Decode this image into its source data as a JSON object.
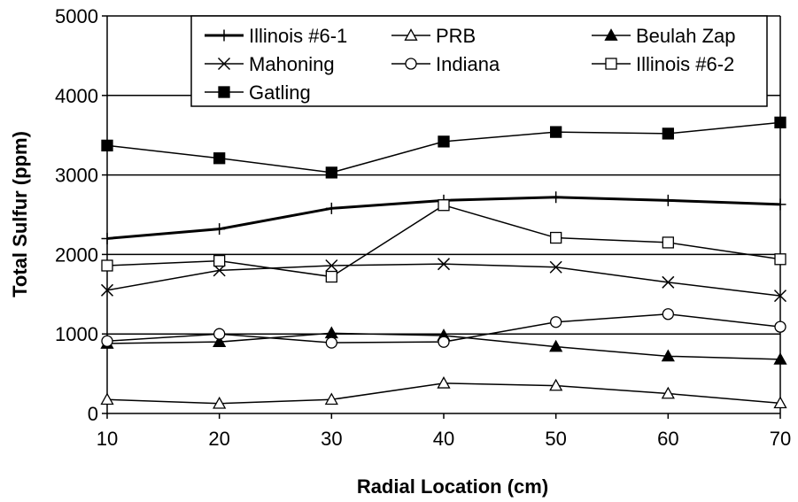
{
  "chart_data": {
    "type": "line",
    "title": "",
    "xlabel": "Radial Location (cm)",
    "ylabel": "Total Sulfur (ppm)",
    "xlim": [
      10,
      70
    ],
    "ylim": [
      0,
      5000
    ],
    "xticks": [
      10,
      20,
      30,
      40,
      50,
      60,
      70
    ],
    "yticks": [
      0,
      1000,
      2000,
      3000,
      4000,
      5000
    ],
    "grid": "horizontal",
    "legend_position": "top-right",
    "x": [
      10,
      20,
      30,
      40,
      50,
      60,
      70
    ],
    "series": [
      {
        "name": "Illinois #6-1",
        "marker": "plus",
        "values": [
          2200,
          2320,
          2580,
          2680,
          2720,
          2680,
          2630
        ]
      },
      {
        "name": "PRB",
        "marker": "triangle-open",
        "values": [
          175,
          125,
          175,
          380,
          350,
          250,
          130
        ]
      },
      {
        "name": "Beulah Zap",
        "marker": "triangle-filled",
        "values": [
          880,
          900,
          1010,
          980,
          840,
          720,
          680
        ]
      },
      {
        "name": "Mahoning",
        "marker": "x",
        "values": [
          1550,
          1800,
          1860,
          1880,
          1840,
          1650,
          1480
        ]
      },
      {
        "name": "Indiana",
        "marker": "circle-open",
        "values": [
          910,
          1000,
          890,
          900,
          1150,
          1250,
          1090
        ]
      },
      {
        "name": "Illinois #6-2",
        "marker": "square-open",
        "values": [
          1860,
          1920,
          1720,
          2620,
          2210,
          2150,
          1940
        ]
      },
      {
        "name": "Gatling",
        "marker": "square-filled",
        "values": [
          3370,
          3210,
          3030,
          3420,
          3540,
          3520,
          3660
        ]
      }
    ]
  }
}
